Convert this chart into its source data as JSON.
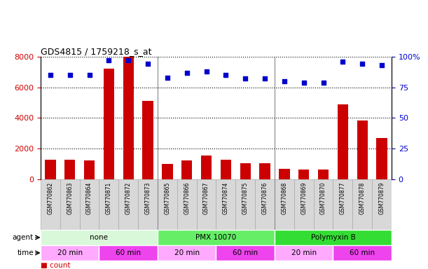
{
  "title": "GDS4815 / 1759218_s_at",
  "samples": [
    "GSM770862",
    "GSM770863",
    "GSM770864",
    "GSM770871",
    "GSM770872",
    "GSM770873",
    "GSM770865",
    "GSM770866",
    "GSM770867",
    "GSM770874",
    "GSM770875",
    "GSM770876",
    "GSM770868",
    "GSM770869",
    "GSM770870",
    "GSM770877",
    "GSM770878",
    "GSM770879"
  ],
  "counts": [
    1300,
    1300,
    1250,
    7200,
    8000,
    5100,
    1000,
    1250,
    1550,
    1300,
    1050,
    1050,
    700,
    650,
    650,
    4900,
    3850,
    2700
  ],
  "percentiles": [
    85,
    85,
    85,
    97,
    97,
    94,
    83,
    87,
    88,
    85,
    82,
    82,
    80,
    79,
    79,
    96,
    94,
    93
  ],
  "ylim_left": [
    0,
    8000
  ],
  "ylim_right": [
    0,
    100
  ],
  "yticks_left": [
    0,
    2000,
    4000,
    6000,
    8000
  ],
  "yticks_right": [
    0,
    25,
    50,
    75,
    100
  ],
  "bar_color": "#cc0000",
  "dot_color": "#0000cc",
  "agent_groups": [
    {
      "label": "none",
      "start": 0,
      "end": 6,
      "color": "#d9f7d9"
    },
    {
      "label": "PMX 10070",
      "start": 6,
      "end": 12,
      "color": "#66ee66"
    },
    {
      "label": "Polymyxin B",
      "start": 12,
      "end": 18,
      "color": "#33dd33"
    }
  ],
  "time_groups": [
    {
      "label": "20 min",
      "start": 0,
      "end": 3,
      "color": "#ffaaff"
    },
    {
      "label": "60 min",
      "start": 3,
      "end": 6,
      "color": "#ee44ee"
    },
    {
      "label": "20 min",
      "start": 6,
      "end": 9,
      "color": "#ffaaff"
    },
    {
      "label": "60 min",
      "start": 9,
      "end": 12,
      "color": "#ee44ee"
    },
    {
      "label": "20 min",
      "start": 12,
      "end": 15,
      "color": "#ffaaff"
    },
    {
      "label": "60 min",
      "start": 15,
      "end": 18,
      "color": "#ee44ee"
    }
  ],
  "legend_count_color": "#cc0000",
  "legend_dot_color": "#0000cc",
  "bg_color": "#ffffff",
  "tick_bg_color": "#d8d8d8",
  "tick_border_color": "#aaaaaa",
  "group_divider_color": "#888888"
}
